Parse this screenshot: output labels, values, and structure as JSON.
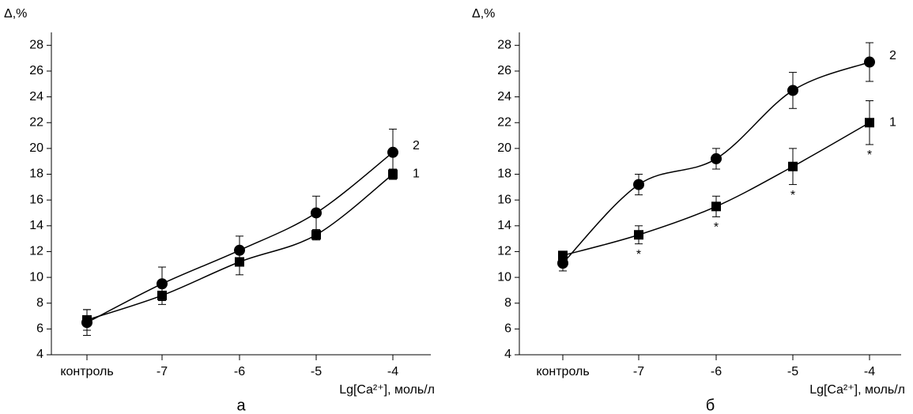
{
  "chart_data": [
    {
      "type": "line",
      "y_label": "Δ,%",
      "x_label": "Lg[Ca²⁺], моль/л",
      "caption": "а",
      "categories": [
        "контроль",
        "-7",
        "-6",
        "-5",
        "-4"
      ],
      "ylim": [
        4,
        29
      ],
      "yticks": [
        4,
        6,
        8,
        10,
        12,
        14,
        16,
        18,
        20,
        22,
        24,
        26,
        28
      ],
      "series": [
        {
          "name": "1",
          "marker": "square",
          "color": "#000000",
          "values": [
            6.7,
            8.6,
            11.2,
            13.3,
            18.0
          ],
          "errors": [
            0.8,
            0.7,
            1.0,
            0.4,
            0.4
          ]
        },
        {
          "name": "2",
          "marker": "circle",
          "color": "#000000",
          "values": [
            6.5,
            9.5,
            12.1,
            15.0,
            19.7
          ],
          "errors": [
            1.0,
            1.3,
            1.1,
            1.3,
            1.8
          ]
        }
      ]
    },
    {
      "type": "line",
      "y_label": "Δ,%",
      "x_label": "Lg[Ca²⁺], моль/л",
      "caption": "б",
      "categories": [
        "контроль",
        "-7",
        "-6",
        "-5",
        "-4"
      ],
      "ylim": [
        4,
        29
      ],
      "yticks": [
        4,
        6,
        8,
        10,
        12,
        14,
        16,
        18,
        20,
        22,
        24,
        26,
        28
      ],
      "series": [
        {
          "name": "1",
          "marker": "square",
          "color": "#000000",
          "values": [
            11.7,
            13.3,
            15.5,
            18.6,
            22.0
          ],
          "errors": [
            0.3,
            0.7,
            0.8,
            1.4,
            1.7
          ],
          "significance": [
            null,
            "*",
            "*",
            "*",
            "*"
          ]
        },
        {
          "name": "2",
          "marker": "circle",
          "color": "#000000",
          "values": [
            11.1,
            17.2,
            19.2,
            24.5,
            26.7
          ],
          "errors": [
            0.6,
            0.8,
            0.8,
            1.4,
            1.5
          ]
        }
      ]
    }
  ]
}
